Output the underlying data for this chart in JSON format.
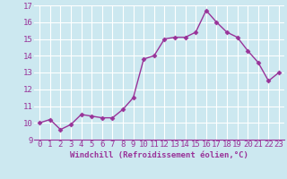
{
  "x": [
    0,
    1,
    2,
    3,
    4,
    5,
    6,
    7,
    8,
    9,
    10,
    11,
    12,
    13,
    14,
    15,
    16,
    17,
    18,
    19,
    20,
    21,
    22,
    23
  ],
  "y": [
    10.0,
    10.2,
    9.6,
    9.9,
    10.5,
    10.4,
    10.3,
    10.3,
    10.8,
    11.5,
    13.8,
    14.0,
    15.0,
    15.1,
    15.1,
    15.4,
    16.7,
    16.0,
    15.4,
    15.1,
    14.3,
    13.6,
    12.5,
    13.0
  ],
  "line_color": "#993399",
  "marker": "D",
  "marker_size": 2.5,
  "bg_color": "#cce8f0",
  "grid_color": "#b0d8e0",
  "xlabel": "Windchill (Refroidissement éolien,°C)",
  "xlim": [
    -0.5,
    23.5
  ],
  "ylim": [
    9,
    17
  ],
  "yticks": [
    9,
    10,
    11,
    12,
    13,
    14,
    15,
    16,
    17
  ],
  "xticks": [
    0,
    1,
    2,
    3,
    4,
    5,
    6,
    7,
    8,
    9,
    10,
    11,
    12,
    13,
    14,
    15,
    16,
    17,
    18,
    19,
    20,
    21,
    22,
    23
  ],
  "xlabel_fontsize": 6.5,
  "tick_fontsize": 6.5,
  "line_width": 1.0
}
